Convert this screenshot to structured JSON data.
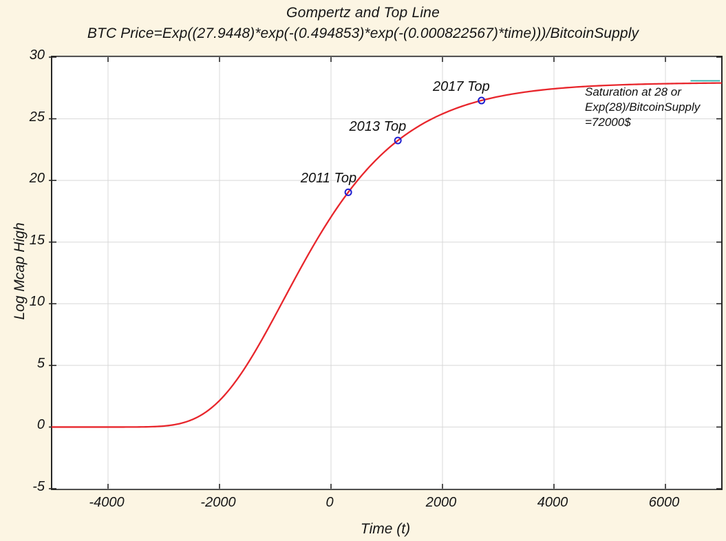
{
  "colors": {
    "background": "#fcf5e3",
    "plot_background": "#ffffff",
    "axis": "#262626",
    "grid": "#d8d8d8",
    "curve_red": "#e8262c",
    "marker_blue": "#1f1fd0",
    "top_line_teal": "#3bb7b2",
    "text": "#161616"
  },
  "chart_data": {
    "type": "line",
    "title": "Gompertz and Top Line",
    "subtitle": "BTC Price=Exp((27.9448)*exp(-(0.494853)*exp(-(0.000822567)*time)))/BitcoinSupply",
    "xlabel": "Time (t)",
    "ylabel": "Log Mcap High",
    "xlim": [
      -5000,
      7000
    ],
    "ylim": [
      -5,
      30
    ],
    "xticks": [
      -4000,
      -2000,
      0,
      2000,
      4000,
      6000
    ],
    "yticks": [
      -5,
      0,
      5,
      10,
      15,
      20,
      25,
      30
    ],
    "grid": true,
    "legend": "none",
    "curve": {
      "name": "Gompertz fit",
      "formula": "Log Mcap = 27.9448*exp(-(0.494853)*exp(-(0.000822567)*t))",
      "A": 27.9448,
      "b": 0.494853,
      "c": 0.000822567,
      "t_start": -5000,
      "t_end": 7000,
      "t_step": 40,
      "saturation_level": 28
    },
    "top_line_end_mark": {
      "t1": 6450,
      "t2": 6980,
      "y": 28.08
    },
    "points": [
      {
        "label": "2011 Top",
        "t": 310,
        "y": 19.04
      },
      {
        "label": "2013 Top",
        "t": 1200,
        "y": 23.24
      },
      {
        "label": "2017 Top",
        "t": 2700,
        "y": 26.48
      }
    ],
    "annotation": "Saturation at 28 or\nExp(28)/BitcoinSupply\n=72000$"
  }
}
